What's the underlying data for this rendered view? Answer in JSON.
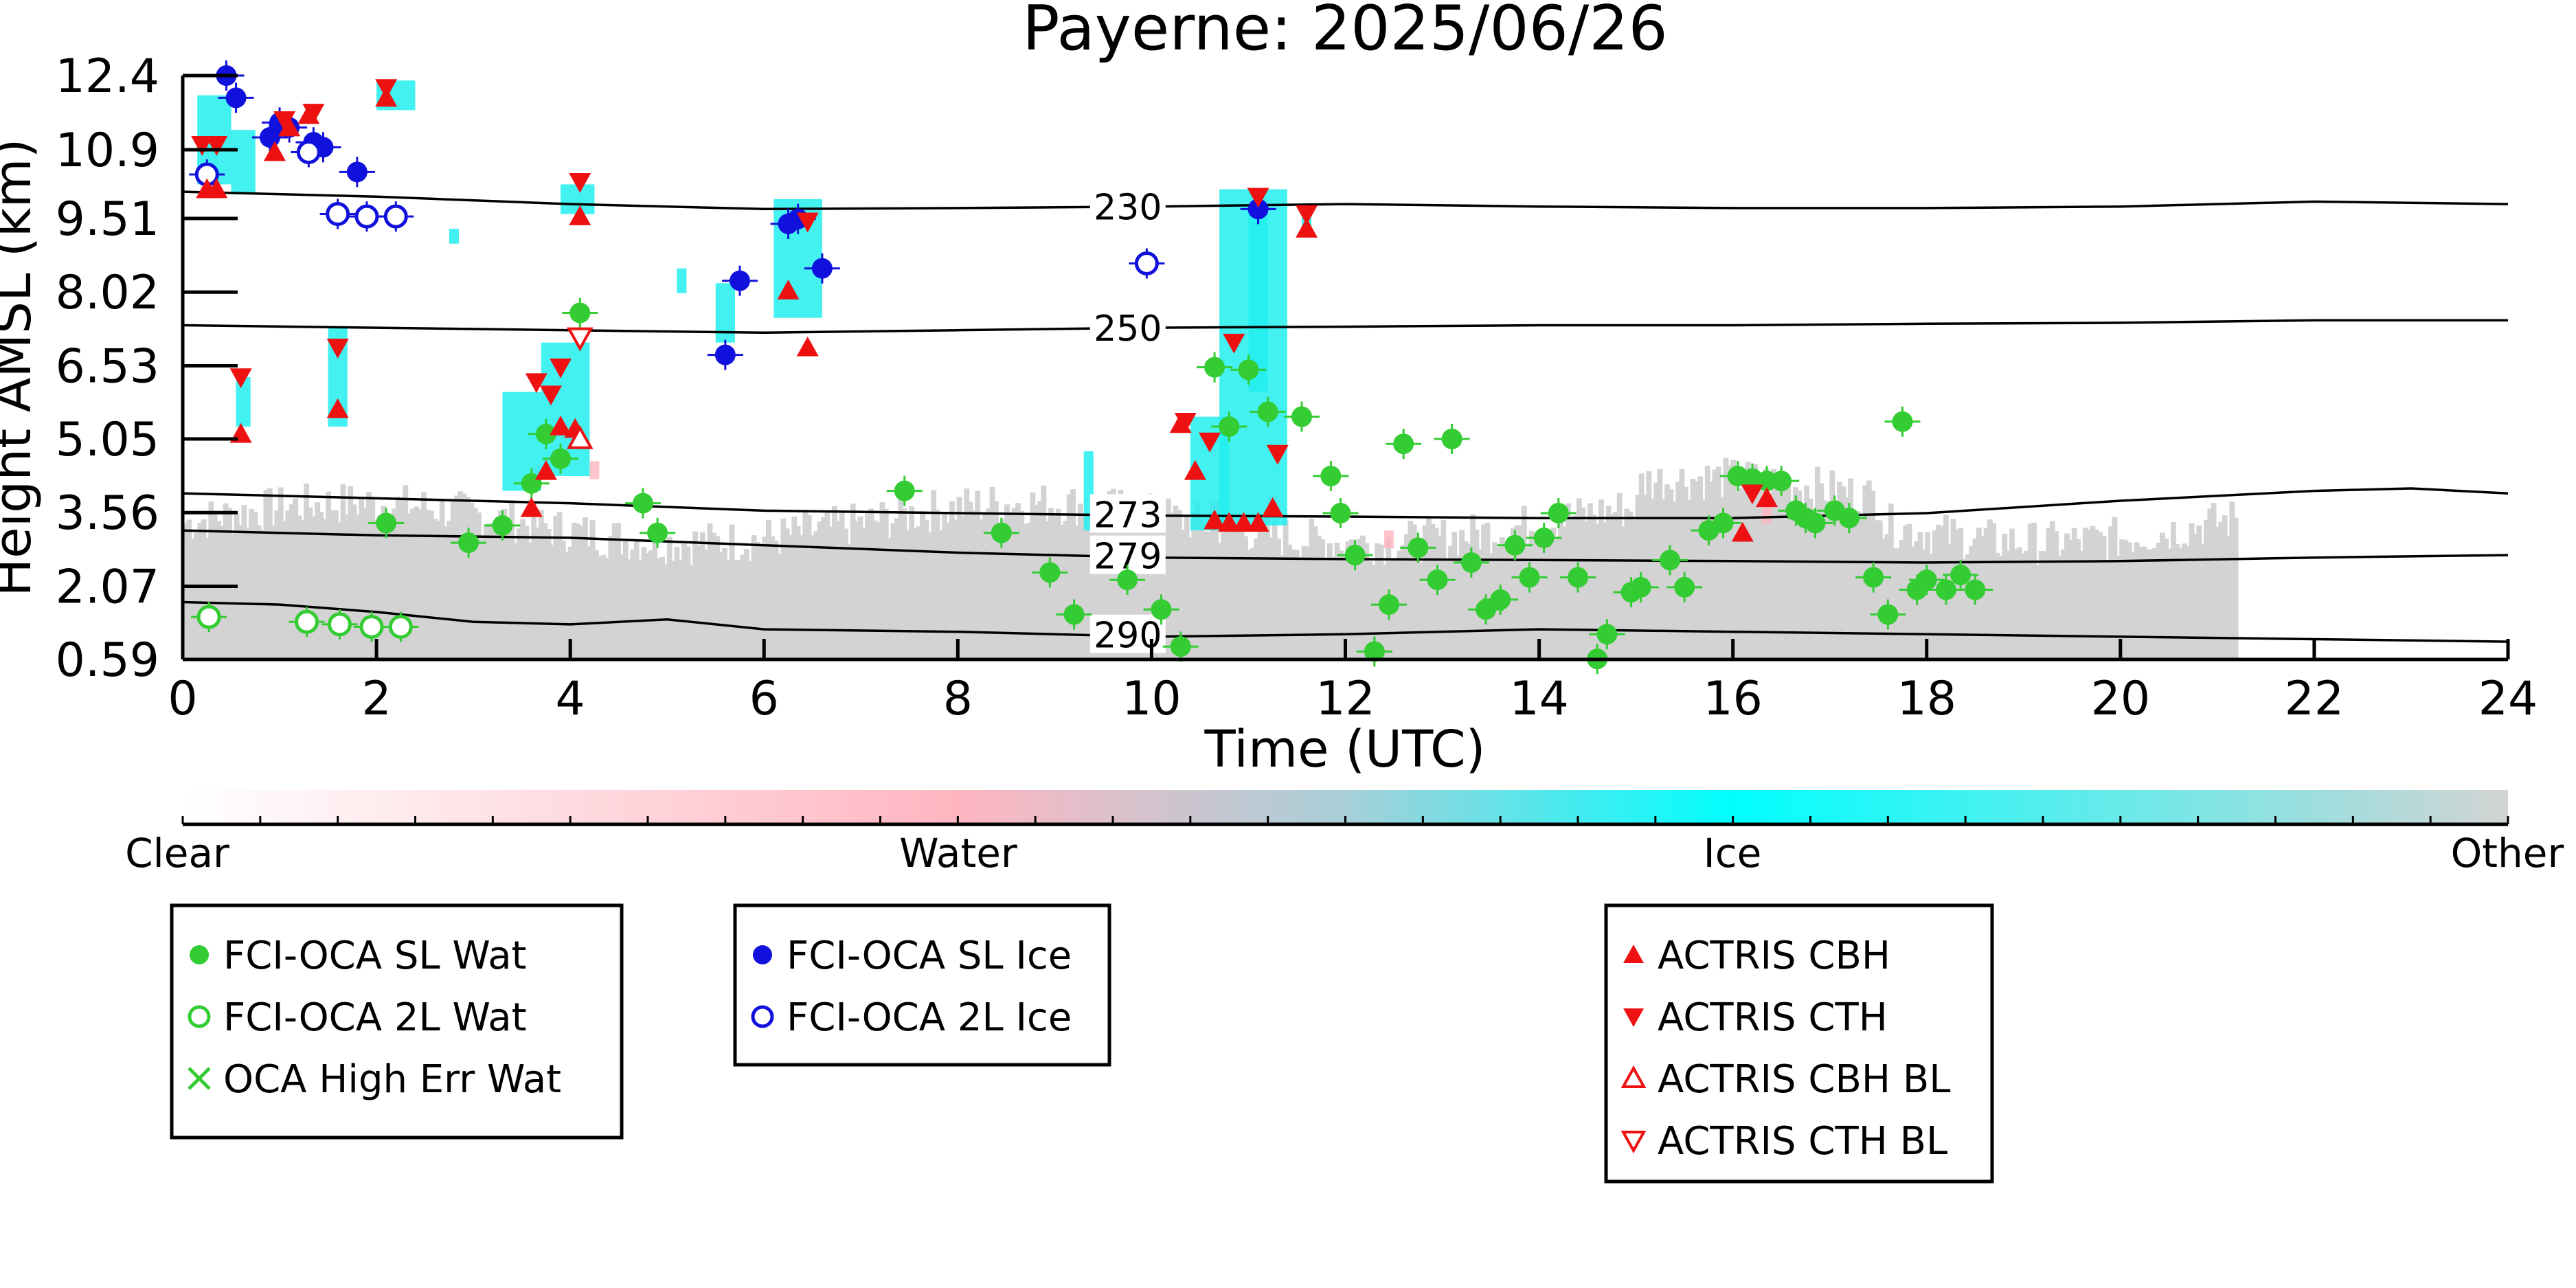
{
  "chart_data": {
    "type": "scatter",
    "title": "Payerne: 2025/06/26",
    "xlabel": "Time (UTC)",
    "ylabel": "Height AMSL (km)",
    "xlim": [
      0,
      24
    ],
    "ylim": [
      0.59,
      12.4
    ],
    "x_ticks": [
      "0",
      "2",
      "4",
      "6",
      "8",
      "10",
      "12",
      "14",
      "16",
      "18",
      "20",
      "22",
      "24"
    ],
    "y_ticks": [
      "0.59",
      "2.07",
      "3.56",
      "5.05",
      "6.53",
      "8.02",
      "9.51",
      "10.9",
      "12.4"
    ],
    "colorbar": {
      "labels": [
        "Clear",
        "Water",
        "Ice",
        "Other"
      ],
      "colors": [
        "#ffffff",
        "#ffb6c1",
        "#00ffff",
        "#d3d3d3"
      ]
    },
    "contours": [
      {
        "label": "230",
        "points": [
          [
            0,
            10.05
          ],
          [
            2,
            9.95
          ],
          [
            4,
            9.8
          ],
          [
            6,
            9.7
          ],
          [
            8,
            9.72
          ],
          [
            10,
            9.75
          ],
          [
            12,
            9.8
          ],
          [
            14,
            9.75
          ],
          [
            16,
            9.72
          ],
          [
            18,
            9.72
          ],
          [
            20,
            9.75
          ],
          [
            22,
            9.85
          ],
          [
            24,
            9.8
          ]
        ],
        "label_at": 9.4
      },
      {
        "label": "250",
        "points": [
          [
            0,
            7.35
          ],
          [
            2,
            7.3
          ],
          [
            4,
            7.25
          ],
          [
            6,
            7.2
          ],
          [
            8,
            7.25
          ],
          [
            10,
            7.3
          ],
          [
            12,
            7.32
          ],
          [
            14,
            7.35
          ],
          [
            16,
            7.35
          ],
          [
            18,
            7.38
          ],
          [
            20,
            7.4
          ],
          [
            22,
            7.45
          ],
          [
            24,
            7.45
          ]
        ],
        "label_at": 9.4
      },
      {
        "label": "273",
        "points": [
          [
            0,
            3.95
          ],
          [
            2,
            3.85
          ],
          [
            4,
            3.75
          ],
          [
            6,
            3.6
          ],
          [
            8,
            3.55
          ],
          [
            10,
            3.5
          ],
          [
            12,
            3.48
          ],
          [
            14,
            3.45
          ],
          [
            16,
            3.45
          ],
          [
            18,
            3.55
          ],
          [
            20,
            3.8
          ],
          [
            22,
            4.0
          ],
          [
            23,
            4.05
          ],
          [
            24,
            3.95
          ]
        ],
        "label_at": 9.4
      },
      {
        "label": "279",
        "points": [
          [
            0,
            3.2
          ],
          [
            2,
            3.1
          ],
          [
            4,
            3.05
          ],
          [
            6,
            2.9
          ],
          [
            8,
            2.75
          ],
          [
            10,
            2.65
          ],
          [
            12,
            2.62
          ],
          [
            14,
            2.6
          ],
          [
            16,
            2.58
          ],
          [
            18,
            2.55
          ],
          [
            20,
            2.58
          ],
          [
            22,
            2.65
          ],
          [
            24,
            2.7
          ]
        ],
        "label_at": 9.4
      },
      {
        "label": "290",
        "points": [
          [
            0,
            1.75
          ],
          [
            1,
            1.7
          ],
          [
            2,
            1.55
          ],
          [
            3,
            1.35
          ],
          [
            4,
            1.3
          ],
          [
            5,
            1.4
          ],
          [
            6,
            1.2
          ],
          [
            8,
            1.15
          ],
          [
            10,
            1.05
          ],
          [
            12,
            1.1
          ],
          [
            14,
            1.2
          ],
          [
            16,
            1.15
          ],
          [
            18,
            1.1
          ],
          [
            20,
            1.05
          ],
          [
            22,
            1.0
          ],
          [
            24,
            0.95
          ]
        ],
        "label_at": 9.4
      }
    ],
    "series": [
      {
        "name": "FCI-OCA SL Wat",
        "color": "#33cc33",
        "marker": "filled-circle",
        "points": [
          [
            2.1,
            3.35
          ],
          [
            2.95,
            2.95
          ],
          [
            3.3,
            3.3
          ],
          [
            3.6,
            4.15
          ],
          [
            3.75,
            5.15
          ],
          [
            3.9,
            4.65
          ],
          [
            4.1,
            7.6
          ],
          [
            4.75,
            3.75
          ],
          [
            4.9,
            3.15
          ],
          [
            7.45,
            4.0
          ],
          [
            8.45,
            3.15
          ],
          [
            8.95,
            2.35
          ],
          [
            9.2,
            1.5
          ],
          [
            9.75,
            2.2
          ],
          [
            10.1,
            1.6
          ],
          [
            10.3,
            0.85
          ],
          [
            10.65,
            6.5
          ],
          [
            10.8,
            5.3
          ],
          [
            11.0,
            6.45
          ],
          [
            11.2,
            5.6
          ],
          [
            11.55,
            5.5
          ],
          [
            11.85,
            4.3
          ],
          [
            11.95,
            3.55
          ],
          [
            12.1,
            2.7
          ],
          [
            12.3,
            0.75
          ],
          [
            12.45,
            1.7
          ],
          [
            12.6,
            4.95
          ],
          [
            12.75,
            2.85
          ],
          [
            12.95,
            2.2
          ],
          [
            13.1,
            5.05
          ],
          [
            13.3,
            2.55
          ],
          [
            13.45,
            1.6
          ],
          [
            13.6,
            1.8
          ],
          [
            13.75,
            2.9
          ],
          [
            13.9,
            2.25
          ],
          [
            14.05,
            3.05
          ],
          [
            14.2,
            3.55
          ],
          [
            14.4,
            2.25
          ],
          [
            14.6,
            0.6
          ],
          [
            14.7,
            1.1
          ],
          [
            14.95,
            1.95
          ],
          [
            15.05,
            2.05
          ],
          [
            15.35,
            2.6
          ],
          [
            15.5,
            2.05
          ],
          [
            15.75,
            3.2
          ],
          [
            15.9,
            3.35
          ],
          [
            16.05,
            4.3
          ],
          [
            16.2,
            4.25
          ],
          [
            16.35,
            4.2
          ],
          [
            16.5,
            4.2
          ],
          [
            16.65,
            3.6
          ],
          [
            16.75,
            3.45
          ],
          [
            16.85,
            3.35
          ],
          [
            17.05,
            3.6
          ],
          [
            17.2,
            3.45
          ],
          [
            17.45,
            2.25
          ],
          [
            17.6,
            1.5
          ],
          [
            17.75,
            5.4
          ],
          [
            17.9,
            2.0
          ],
          [
            18.0,
            2.2
          ],
          [
            18.2,
            2.0
          ],
          [
            18.35,
            2.3
          ],
          [
            18.5,
            2.0
          ]
        ]
      },
      {
        "name": "FCI-OCA 2L Wat",
        "color": "#33cc33",
        "marker": "open-circle",
        "points": [
          [
            0.27,
            1.45
          ],
          [
            1.28,
            1.35
          ],
          [
            1.62,
            1.3
          ],
          [
            1.95,
            1.25
          ],
          [
            2.25,
            1.25
          ]
        ]
      },
      {
        "name": "OCA High Err Wat",
        "color": "#33cc33",
        "marker": "x",
        "points": []
      },
      {
        "name": "FCI-OCA SL Ice",
        "color": "#1111dd",
        "marker": "filled-circle",
        "points": [
          [
            0.45,
            12.4
          ],
          [
            0.55,
            11.95
          ],
          [
            0.9,
            11.15
          ],
          [
            1.0,
            11.45
          ],
          [
            1.1,
            11.35
          ],
          [
            1.35,
            11.05
          ],
          [
            1.45,
            10.95
          ],
          [
            1.8,
            10.45
          ],
          [
            5.6,
            6.75
          ],
          [
            5.75,
            8.25
          ],
          [
            6.25,
            9.4
          ],
          [
            6.35,
            9.5
          ],
          [
            6.6,
            8.5
          ],
          [
            11.1,
            9.7
          ]
        ]
      },
      {
        "name": "FCI-OCA 2L Ice",
        "color": "#1111dd",
        "marker": "open-circle",
        "points": [
          [
            0.25,
            10.4
          ],
          [
            1.3,
            10.85
          ],
          [
            1.6,
            9.6
          ],
          [
            1.9,
            9.55
          ],
          [
            2.2,
            9.55
          ],
          [
            9.95,
            8.6
          ]
        ]
      },
      {
        "name": "ACTRIS CBH",
        "color": "#ee1111",
        "marker": "triangle-up",
        "points": [
          [
            0.25,
            10.1
          ],
          [
            0.35,
            10.1
          ],
          [
            0.6,
            5.15
          ],
          [
            0.95,
            10.85
          ],
          [
            1.1,
            11.35
          ],
          [
            1.3,
            11.6
          ],
          [
            1.6,
            5.65
          ],
          [
            2.1,
            11.95
          ],
          [
            3.6,
            3.65
          ],
          [
            3.75,
            4.4
          ],
          [
            3.9,
            5.3
          ],
          [
            4.05,
            5.25
          ],
          [
            4.1,
            9.55
          ],
          [
            6.25,
            8.05
          ],
          [
            6.45,
            6.9
          ],
          [
            10.3,
            5.35
          ],
          [
            10.45,
            4.4
          ],
          [
            10.65,
            3.4
          ],
          [
            10.8,
            3.35
          ],
          [
            10.95,
            3.35
          ],
          [
            11.1,
            3.35
          ],
          [
            11.25,
            3.65
          ],
          [
            11.6,
            9.3
          ],
          [
            16.1,
            3.15
          ],
          [
            16.35,
            3.85
          ]
        ]
      },
      {
        "name": "ACTRIS CTH",
        "color": "#ee1111",
        "marker": "triangle-down",
        "points": [
          [
            0.2,
            11.0
          ],
          [
            0.35,
            11.0
          ],
          [
            0.6,
            6.3
          ],
          [
            1.05,
            11.5
          ],
          [
            1.35,
            11.65
          ],
          [
            1.6,
            6.9
          ],
          [
            2.1,
            12.15
          ],
          [
            3.65,
            6.2
          ],
          [
            3.8,
            5.95
          ],
          [
            3.9,
            6.5
          ],
          [
            4.1,
            10.25
          ],
          [
            6.45,
            9.45
          ],
          [
            10.35,
            5.4
          ],
          [
            10.6,
            5.0
          ],
          [
            10.85,
            7.0
          ],
          [
            11.1,
            9.95
          ],
          [
            11.3,
            4.75
          ],
          [
            11.6,
            9.6
          ],
          [
            16.2,
            3.95
          ]
        ]
      },
      {
        "name": "ACTRIS CBH BL",
        "color": "#ee1111",
        "marker": "open-triangle-up",
        "points": [
          [
            4.1,
            5.05
          ]
        ]
      },
      {
        "name": "ACTRIS CTH BL",
        "color": "#ee1111",
        "marker": "open-triangle-down",
        "points": [
          [
            4.1,
            7.1
          ]
        ]
      }
    ],
    "legend_groups": [
      [
        "FCI-OCA SL Wat",
        "FCI-OCA 2L Wat",
        "OCA High Err Wat"
      ],
      [
        "FCI-OCA SL Ice",
        "FCI-OCA 2L Ice"
      ],
      [
        "ACTRIS CBH",
        "ACTRIS CTH",
        "ACTRIS CBH BL",
        "ACTRIS CTH BL"
      ]
    ]
  }
}
